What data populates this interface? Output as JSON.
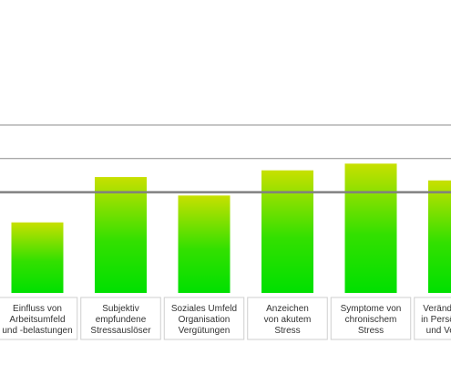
{
  "chart_data": {
    "type": "bar",
    "ylim": [
      0,
      100
    ],
    "grid": true,
    "reference_lines": [
      60,
      80
    ],
    "categories": [
      [
        "Einfluss von",
        "Arbeitsumfeld",
        "und -belastungen"
      ],
      [
        "Subjektiv",
        "empfundene",
        "Stressauslöser"
      ],
      [
        "Soziales Umfeld",
        "Organisation",
        "Vergütungen"
      ],
      [
        "Anzeichen",
        "von akutem",
        "Stress"
      ],
      [
        "Symptome von",
        "chronischem",
        "Stress"
      ],
      [
        "Veränderungen",
        "in Persönlichkeit",
        "und Verhalten"
      ]
    ],
    "values": [
      42,
      69,
      58,
      73,
      77,
      67
    ],
    "colors": {
      "bar_top": "#c8e000",
      "bar_bottom": "#00e000"
    }
  }
}
